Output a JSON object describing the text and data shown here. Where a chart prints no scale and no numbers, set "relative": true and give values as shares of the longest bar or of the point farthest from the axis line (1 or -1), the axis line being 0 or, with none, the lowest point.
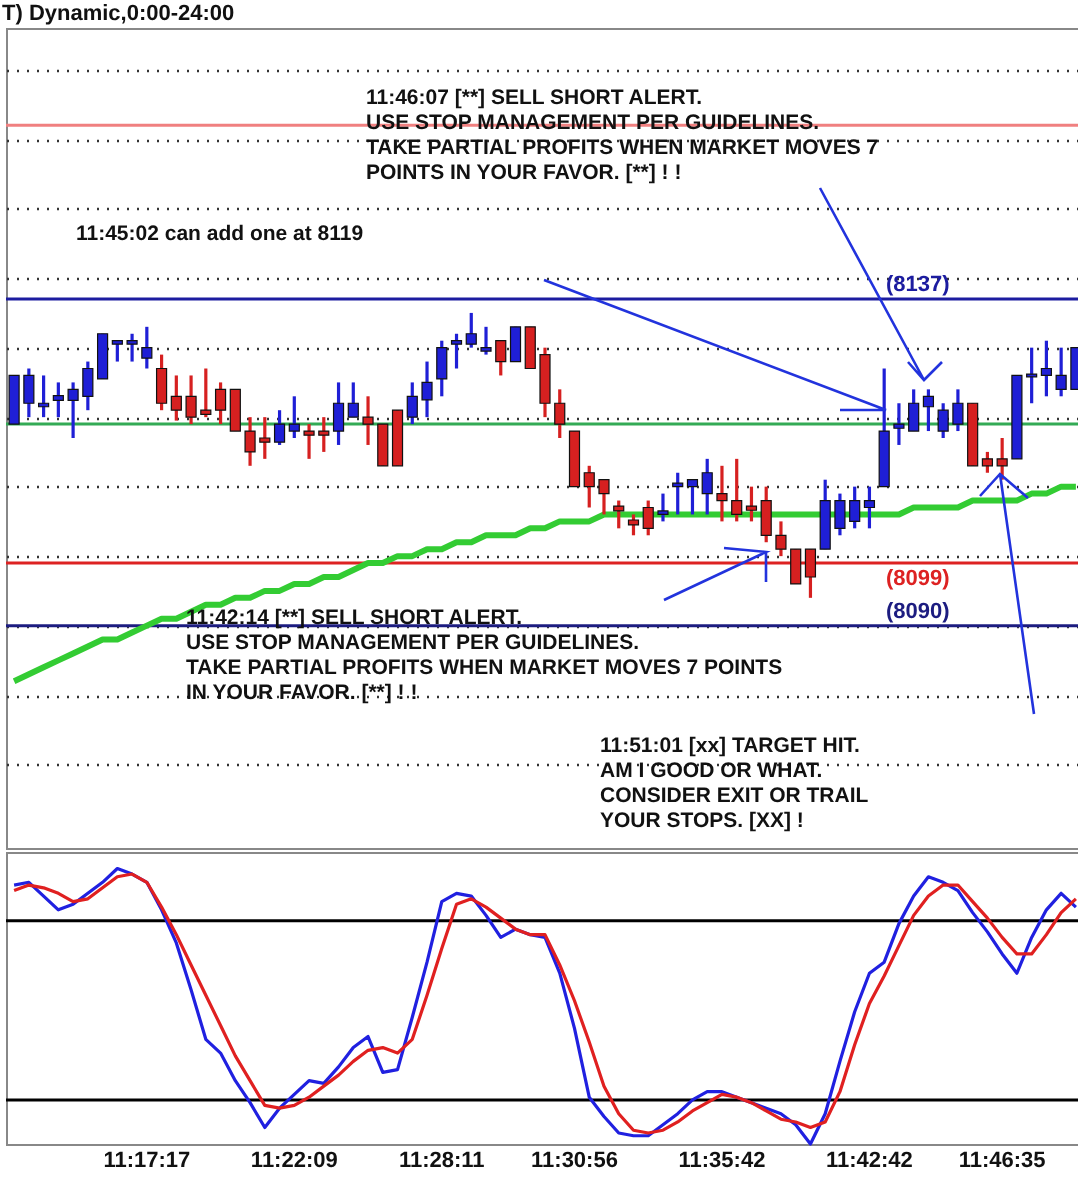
{
  "chart_data": [
    {
      "type": "candlestick",
      "title": "T) Dynamic,0:00-24:00",
      "grid": "y",
      "categories": [
        null,
        null,
        null,
        null,
        null,
        null,
        null,
        null,
        null,
        null,
        null,
        null,
        null,
        null,
        null,
        null,
        null,
        null,
        null,
        null,
        null,
        null,
        null,
        null,
        null,
        null,
        null,
        null,
        null,
        null,
        null,
        null,
        null,
        null,
        null,
        null,
        null,
        null,
        null,
        null,
        null,
        null,
        null,
        null,
        null,
        null,
        null,
        null,
        null,
        null,
        null,
        null,
        null,
        null,
        null,
        null,
        null,
        null,
        null,
        null,
        null,
        null,
        null,
        null,
        null,
        null,
        null,
        null,
        null,
        null,
        null,
        null,
        null
      ],
      "ohlc": [
        [
          8119,
          8126,
          8119,
          8126
        ],
        [
          8122,
          8127,
          8120,
          8126
        ],
        [
          8121.5,
          8126,
          8120,
          8122
        ],
        [
          8122.4,
          8125,
          8120,
          8123.1
        ],
        [
          8122.4,
          8125,
          8117,
          8124
        ],
        [
          8123,
          8128,
          8121,
          8127
        ],
        [
          8125.5,
          8132,
          8125.5,
          8132
        ],
        [
          8130.5,
          8131,
          8128,
          8131
        ],
        [
          8130.5,
          8132,
          8128,
          8131
        ],
        [
          8128.5,
          8133,
          8127,
          8130
        ],
        [
          8127,
          8129,
          8121,
          8122
        ],
        [
          8123,
          8126,
          8119.5,
          8121
        ],
        [
          8123,
          8126,
          8119,
          8120
        ],
        [
          8121,
          8127,
          8120,
          8120.4
        ],
        [
          8124,
          8125,
          8119,
          8121
        ],
        [
          8124,
          8124,
          8118,
          8118
        ],
        [
          8118,
          8120,
          8113,
          8115
        ],
        [
          8117,
          8120,
          8114,
          8116.4
        ],
        [
          8116.4,
          8121,
          8116,
          8119
        ],
        [
          8118,
          8123,
          8117,
          8119
        ],
        [
          8118,
          8119,
          8114,
          8117.4
        ],
        [
          8118,
          8120,
          8115,
          8117.4
        ],
        [
          8118,
          8125,
          8116,
          8122
        ],
        [
          8120,
          8125,
          8120,
          8122
        ],
        [
          8120,
          8123,
          8116,
          8119
        ],
        [
          8119,
          8119,
          8113,
          8113
        ],
        [
          8121,
          8121,
          8113,
          8113
        ],
        [
          8120,
          8125,
          8119,
          8123
        ],
        [
          8122.5,
          8128,
          8120,
          8125
        ],
        [
          8125.5,
          8131,
          8123,
          8130
        ],
        [
          8130.5,
          8132,
          8127,
          8131
        ],
        [
          8130.5,
          8135,
          8130,
          8132
        ],
        [
          8129.5,
          8133,
          8129,
          8130
        ],
        [
          8131,
          8131,
          8126,
          8128
        ],
        [
          8128,
          8133,
          8128,
          8133
        ],
        [
          8133,
          8133,
          8127,
          8127
        ],
        [
          8129,
          8130,
          8120,
          8122
        ],
        [
          8122,
          8124,
          8117,
          8119
        ],
        [
          8118,
          8118,
          8110,
          8110
        ],
        [
          8112,
          8113,
          8107,
          8110
        ],
        [
          8111,
          8111,
          8106,
          8109
        ],
        [
          8107.2,
          8108,
          8104,
          8106.5
        ],
        [
          8105.2,
          8106,
          8103,
          8104.5
        ],
        [
          8107,
          8108,
          8103,
          8104
        ],
        [
          8106,
          8109,
          8105,
          8106.5
        ],
        [
          8110,
          8112,
          8106,
          8110.5
        ],
        [
          8110,
          8111,
          8106,
          8111
        ],
        [
          8109,
          8114,
          8106,
          8112
        ],
        [
          8109,
          8113,
          8105,
          8108
        ],
        [
          8108,
          8114,
          8105,
          8106
        ],
        [
          8107.2,
          8110,
          8105,
          8106.6
        ],
        [
          8108,
          8110,
          8102,
          8103
        ],
        [
          8103,
          8105,
          8100,
          8101
        ],
        [
          8101,
          8101,
          8096,
          8096
        ],
        [
          8101,
          8101,
          8094,
          8097
        ],
        [
          8101,
          8111,
          8101,
          8108
        ],
        [
          8104,
          8109,
          8103,
          8108
        ],
        [
          8105,
          8110,
          8104,
          8108
        ],
        [
          8107,
          8110,
          8104,
          8108
        ],
        [
          8110,
          8127,
          8110,
          8118
        ],
        [
          8118.4,
          8122,
          8116,
          8119
        ],
        [
          8118,
          8124,
          8118,
          8122
        ],
        [
          8121.5,
          8124,
          8118,
          8123
        ],
        [
          8118,
          8122,
          8117,
          8121
        ],
        [
          8119,
          8124,
          8118,
          8122
        ],
        [
          8122,
          8122,
          8113,
          8113
        ],
        [
          8114,
          8115,
          8112,
          8113
        ],
        [
          8114,
          8117,
          8111,
          8113
        ],
        [
          8114,
          8126,
          8114,
          8126
        ],
        [
          8125.8,
          8130,
          8122,
          8126.2
        ],
        [
          8126,
          8131,
          8123,
          8127
        ],
        [
          8124,
          8130,
          8123,
          8126
        ],
        [
          8124,
          8130,
          8124,
          8130
        ]
      ],
      "colors": [
        "#1f1fd6",
        "#1f1fd6",
        "#1f1fd6",
        "#1f1fd6",
        "#1f1fd6",
        "#1f1fd6",
        "#1f1fd6",
        "#1f1fd6",
        "#1f1fd6",
        "#1f1fd6",
        "#d62020",
        "#d62020",
        "#d62020",
        "#d62020",
        "#d62020",
        "#d62020",
        "#d62020",
        "#d62020",
        "#1f1fd6",
        "#1f1fd6",
        "#d62020",
        "#d62020",
        "#1f1fd6",
        "#1f1fd6",
        "#d62020",
        "#d62020",
        "#d62020",
        "#1f1fd6",
        "#1f1fd6",
        "#1f1fd6",
        "#1f1fd6",
        "#1f1fd6",
        "#1f1fd6",
        "#d62020",
        "#1f1fd6",
        "#d62020",
        "#d62020",
        "#d62020",
        "#d62020",
        "#d62020",
        "#d62020",
        "#d62020",
        "#d62020",
        "#d62020",
        "#1f1fd6",
        "#1f1fd6",
        "#1f1fd6",
        "#1f1fd6",
        "#d62020",
        "#d62020",
        "#d62020",
        "#d62020",
        "#d62020",
        "#d62020",
        "#d62020",
        "#1f1fd6",
        "#1f1fd6",
        "#1f1fd6",
        "#1f1fd6",
        "#1f1fd6",
        "#1f1fd6",
        "#1f1fd6",
        "#1f1fd6",
        "#1f1fd6",
        "#1f1fd6",
        "#d62020",
        "#d62020",
        "#d62020",
        "#1f1fd6",
        "#1f1fd6",
        "#1f1fd6",
        "#1f1fd6",
        "#1f1fd6"
      ],
      "series": [
        {
          "type": "line",
          "color": "#33cc33",
          "values": [
            8082,
            8083,
            8084,
            8085,
            8086,
            8087,
            8088,
            8088,
            8089,
            8090,
            8091,
            8091,
            8092,
            8093,
            8093,
            8094,
            8094,
            8095,
            8095,
            8096,
            8096,
            8097,
            8097,
            8098,
            8099,
            8099,
            8100,
            8100,
            8101,
            8101,
            8102,
            8102,
            8103,
            8103,
            8103,
            8104,
            8104,
            8105,
            8105,
            8105,
            8106,
            8106,
            8106,
            8106,
            8106,
            8106,
            8106,
            8106,
            8106,
            8106,
            8106,
            8106,
            8106,
            8106,
            8106,
            8106,
            8106,
            8106,
            8106,
            8106,
            8106,
            8107,
            8107,
            8107,
            8107,
            8108,
            8108,
            8108,
            8108,
            8109,
            8109,
            8110,
            8110
          ]
        }
      ],
      "ylim": [
        8058,
        8176
      ],
      "yticks": [
        {
          "value": 8070,
          "label": null
        },
        {
          "value": 8080,
          "label": null
        },
        {
          "value": 8090,
          "label": null
        },
        {
          "value": 8100,
          "label": null
        },
        {
          "value": 8110,
          "label": null
        },
        {
          "value": 8120,
          "label": null
        },
        {
          "value": 8130,
          "label": null
        },
        {
          "value": 8140,
          "label": null
        },
        {
          "value": 8150,
          "label": null
        },
        {
          "value": 8160,
          "label": null
        },
        {
          "value": 8170,
          "label": null
        }
      ],
      "ref_lines": [
        {
          "axis": "y",
          "value": 8162,
          "color": "#f08080"
        },
        {
          "axis": "y",
          "value": 8137,
          "label": "(8137)",
          "color": "#1c1ca0"
        },
        {
          "axis": "y",
          "value": 8119,
          "color": "#33aa55"
        },
        {
          "axis": "y",
          "value": 8099,
          "label": "(8099)",
          "color": "#dd2222"
        },
        {
          "axis": "y",
          "value": 8090,
          "label": "(8090)",
          "color": "#1c1c80"
        }
      ],
      "annotations": [
        "11:46:07 [**] SELL SHORT ALERT.\nUSE STOP MANAGEMENT PER GUIDELINES.\nTAKE PARTIAL PROFITS WHEN MARKET MOVES 7\nPOINTS IN YOUR FAVOR. [**] ! !",
        "11:45:02 can add one at 8119",
        "11:42:14 [**] SELL SHORT ALERT.\nUSE STOP MANAGEMENT PER GUIDELINES.\nTAKE PARTIAL PROFITS WHEN MARKET MOVES 7 POINTS\nIN YOUR FAVOR. [**] ! !",
        "11:51:01 [xx] TARGET HIT.\nAM I GOOD OR WHAT.\nCONSIDER EXIT OR TRAIL\nYOUR STOPS. [XX] !"
      ]
    },
    {
      "type": "line",
      "relative": true,
      "categories": [
        null,
        null,
        null,
        null,
        null,
        null,
        null,
        null,
        null,
        "11:17:17",
        null,
        null,
        null,
        null,
        null,
        null,
        null,
        null,
        null,
        "11:22:09",
        null,
        null,
        null,
        null,
        null,
        null,
        null,
        null,
        null,
        "11:28:11",
        null,
        null,
        null,
        null,
        null,
        null,
        null,
        null,
        "11:30:56",
        null,
        null,
        null,
        null,
        null,
        null,
        null,
        null,
        null,
        "11:35:42",
        null,
        null,
        null,
        null,
        null,
        null,
        null,
        null,
        null,
        "11:42:42",
        null,
        null,
        null,
        null,
        null,
        null,
        null,
        null,
        "11:46:35",
        null,
        null,
        null,
        null,
        null
      ],
      "series": [
        {
          "color": "#2020e0",
          "values": [
            0.94,
            0.95,
            0.9,
            0.85,
            0.87,
            0.91,
            0.95,
            1,
            0.98,
            0.95,
            0.85,
            0.73,
            0.56,
            0.38,
            0.33,
            0.23,
            0.15,
            0.06,
            0.13,
            0.18,
            0.23,
            0.22,
            0.28,
            0.35,
            0.39,
            0.26,
            0.27,
            0.46,
            0.66,
            0.88,
            0.91,
            0.9,
            0.83,
            0.75,
            0.78,
            0.76,
            0.75,
            0.62,
            0.42,
            0.17,
            0.1,
            0.04,
            0.03,
            0.03,
            0.07,
            0.11,
            0.16,
            0.19,
            0.19,
            0.17,
            0.15,
            0.13,
            0.11,
            0.07,
            0,
            0.11,
            0.3,
            0.48,
            0.62,
            0.66,
            0.8,
            0.9,
            0.97,
            0.95,
            0.92,
            0.84,
            0.77,
            0.69,
            0.62,
            0.75,
            0.85,
            0.91,
            0.86
          ]
        },
        {
          "color": "#e02020",
          "values": [
            0.92,
            0.94,
            0.93,
            0.91,
            0.88,
            0.89,
            0.93,
            0.97,
            0.98,
            0.95,
            0.86,
            0.76,
            0.65,
            0.54,
            0.43,
            0.32,
            0.23,
            0.14,
            0.13,
            0.14,
            0.17,
            0.21,
            0.25,
            0.3,
            0.34,
            0.35,
            0.33,
            0.38,
            0.54,
            0.71,
            0.87,
            0.89,
            0.86,
            0.82,
            0.78,
            0.76,
            0.76,
            0.65,
            0.52,
            0.37,
            0.21,
            0.11,
            0.05,
            0.04,
            0.05,
            0.08,
            0.12,
            0.15,
            0.18,
            0.17,
            0.15,
            0.12,
            0.09,
            0.08,
            0.06,
            0.08,
            0.19,
            0.36,
            0.51,
            0.61,
            0.72,
            0.83,
            0.9,
            0.94,
            0.94,
            0.88,
            0.82,
            0.75,
            0.69,
            0.69,
            0.76,
            0.84,
            0.89
          ]
        }
      ],
      "ref_lines": [
        {
          "axis": "y",
          "value": 0.81,
          "color": "#000000"
        },
        {
          "axis": "y",
          "value": 0.16,
          "color": "#000000"
        }
      ]
    }
  ]
}
